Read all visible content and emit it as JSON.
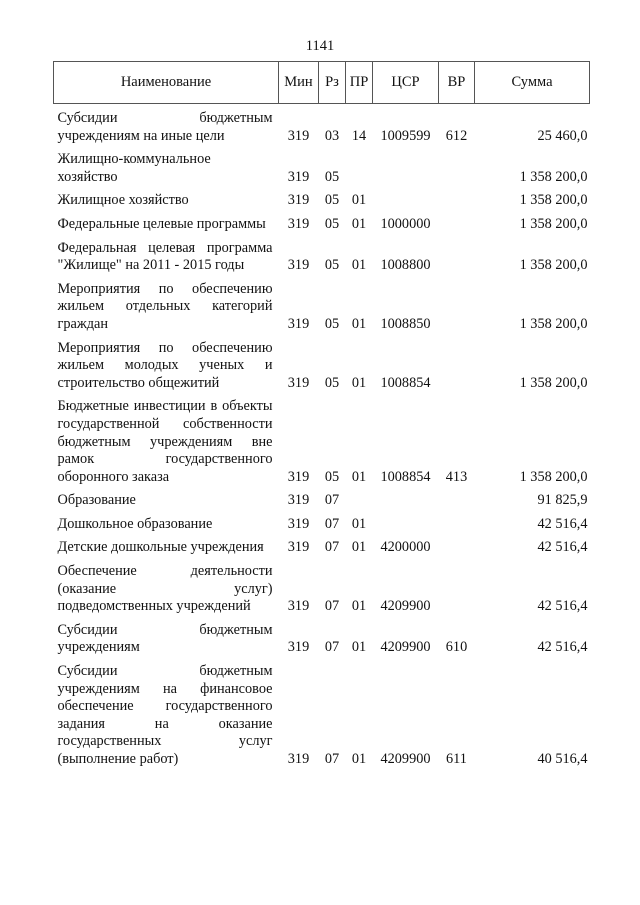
{
  "page_number": "1141",
  "table": {
    "headers": [
      "Наименование",
      "Мин",
      "Рз",
      "ПР",
      "ЦСР",
      "ВР",
      "Сумма"
    ],
    "rows": [
      {
        "name": "Субсидии бюджетным учреждениям на иные цели",
        "min": "319",
        "rz": "03",
        "pr": "14",
        "csr": "1009599",
        "vr": "612",
        "sum": "25 460,0"
      },
      {
        "name": "Жилищно-коммунальное хозяйство",
        "min": "319",
        "rz": "05",
        "pr": "",
        "csr": "",
        "vr": "",
        "sum": "1 358 200,0"
      },
      {
        "name": "Жилищное хозяйство",
        "min": "319",
        "rz": "05",
        "pr": "01",
        "csr": "",
        "vr": "",
        "sum": "1 358 200,0"
      },
      {
        "name": "Федеральные целевые программы",
        "min": "319",
        "rz": "05",
        "pr": "01",
        "csr": "1000000",
        "vr": "",
        "sum": "1 358 200,0"
      },
      {
        "name": "Федеральная целевая программа \"Жилище\" на 2011 - 2015 годы",
        "min": "319",
        "rz": "05",
        "pr": "01",
        "csr": "1008800",
        "vr": "",
        "sum": "1 358 200,0"
      },
      {
        "name": "Мероприятия по обеспечению жильем отдельных категорий граждан",
        "min": "319",
        "rz": "05",
        "pr": "01",
        "csr": "1008850",
        "vr": "",
        "sum": "1 358 200,0"
      },
      {
        "name": "Мероприятия по обеспечению жильем молодых ученых и строительство общежитий",
        "min": "319",
        "rz": "05",
        "pr": "01",
        "csr": "1008854",
        "vr": "",
        "sum": "1 358 200,0"
      },
      {
        "name": "Бюджетные инвестиции в объекты государственной собственности бюджетным учреждениям вне рамок государственного оборонного заказа",
        "min": "319",
        "rz": "05",
        "pr": "01",
        "csr": "1008854",
        "vr": "413",
        "sum": "1 358 200,0"
      },
      {
        "name": "Образование",
        "min": "319",
        "rz": "07",
        "pr": "",
        "csr": "",
        "vr": "",
        "sum": "91 825,9"
      },
      {
        "name": "Дошкольное образование",
        "min": "319",
        "rz": "07",
        "pr": "01",
        "csr": "",
        "vr": "",
        "sum": "42 516,4"
      },
      {
        "name": "Детские дошкольные учреждения",
        "min": "319",
        "rz": "07",
        "pr": "01",
        "csr": "4200000",
        "vr": "",
        "sum": "42 516,4"
      },
      {
        "name": "Обеспечение деятельности (оказание услуг) подведомственных учреждений",
        "min": "319",
        "rz": "07",
        "pr": "01",
        "csr": "4209900",
        "vr": "",
        "sum": "42 516,4"
      },
      {
        "name": "Субсидии бюджетным учреждениям",
        "min": "319",
        "rz": "07",
        "pr": "01",
        "csr": "4209900",
        "vr": "610",
        "sum": "42 516,4"
      },
      {
        "name": "Субсидии бюджетным учреждениям на финансовое обеспечение государственного задания на оказание государственных услуг (выполнение работ)",
        "min": "319",
        "rz": "07",
        "pr": "01",
        "csr": "4209900",
        "vr": "611",
        "sum": "40 516,4"
      }
    ]
  }
}
